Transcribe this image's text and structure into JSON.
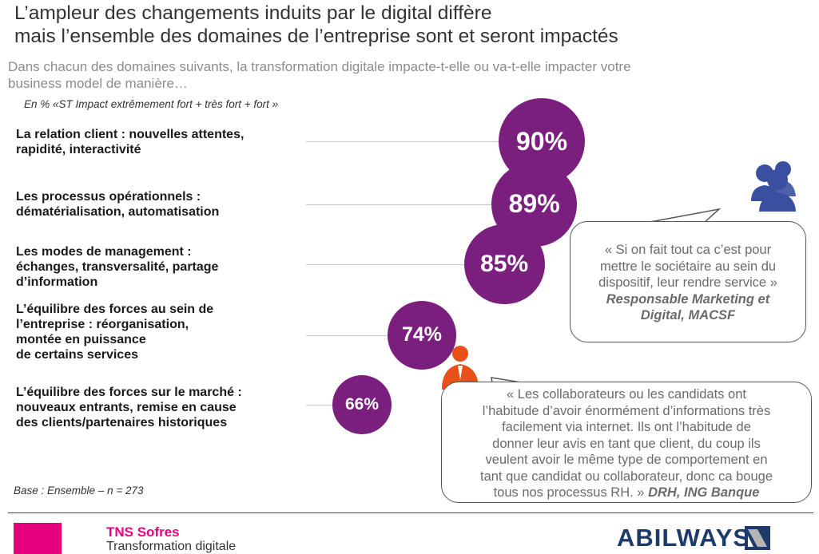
{
  "header": {
    "title_line1": "L’ampleur des changements induits par le digital diffère",
    "title_line2": "mais l’ensemble des domaines de l’entreprise sont et seront impactés",
    "subtitle_line1": "Dans chacun des domaines suivants, la transformation digitale impacte-t-elle ou va-t-elle impacter votre",
    "subtitle_line2": "business model de manière…",
    "note": "En % «ST Impact extrêmement fort + très fort + fort »"
  },
  "chart_data": {
    "type": "bubble",
    "unit": "%",
    "categories": [
      "La relation client : nouvelles attentes, rapidité, interactivité",
      "Les processus opérationnels : dématérialisation, automatisation",
      "Les modes de management : échanges, transversalité, partage d’information",
      "L’équilibre des forces au sein de l’entreprise : réorganisation, montée en puissance de certains services",
      "L’équilibre des forces sur le marché : nouveaux entrants, remise en cause des clients/partenaires historiques"
    ],
    "values": [
      90,
      89,
      85,
      74,
      66
    ],
    "value_labels": [
      "90%",
      "89%",
      "85%",
      "74%",
      "66%"
    ],
    "bubble_color": "#7b1f7f",
    "label_lines": [
      [
        "La relation client : nouvelles attentes,",
        "rapidité, interactivité"
      ],
      [
        "Les processus opérationnels :",
        "dématérialisation, automatisation"
      ],
      [
        "Les modes de management :",
        "échanges, transversalité, partage",
        "d’information"
      ],
      [
        "L’équilibre des forces au sein de",
        "l’entreprise : réorganisation,",
        "montée en puissance",
        "de certains services"
      ],
      [
        "L’équilibre des forces sur le marché :",
        "nouveaux entrants, remise en cause",
        "des clients/partenaires historiques"
      ]
    ]
  },
  "quotes": [
    {
      "icon": "group-icon",
      "icon_color": "#3a4fa0",
      "lines": [
        "« Si on fait tout ca c’est pour",
        "mettre le sociétaire au sein du",
        "dispositif, leur rendre service »"
      ],
      "source_lines": [
        "Responsable Marketing et",
        "Digital, MACSF"
      ]
    },
    {
      "icon": "person-icon",
      "icon_color": "#e8501a",
      "lines": [
        "« Les collaborateurs ou les candidats ont",
        "l’habitude d’avoir énormément d’informations très",
        "facilement via internet. Ils ont l’habitude de",
        "donner leur avis en tant que client, du coup ils",
        "veulent avoir le même type de comportement en",
        "tant que candidat ou collaborateur, donc ca bouge",
        "tous nos processus RH. »"
      ],
      "source": "DRH, ING Banque"
    }
  ],
  "base": "Base : Ensemble – n = 273",
  "footer": {
    "brand": "TNS Sofres",
    "brand_sub": "Transformation digitale",
    "partner_logo": "ABILWAYS",
    "brand_color": "#e5007e",
    "partner_color": "#1d3a6c"
  }
}
